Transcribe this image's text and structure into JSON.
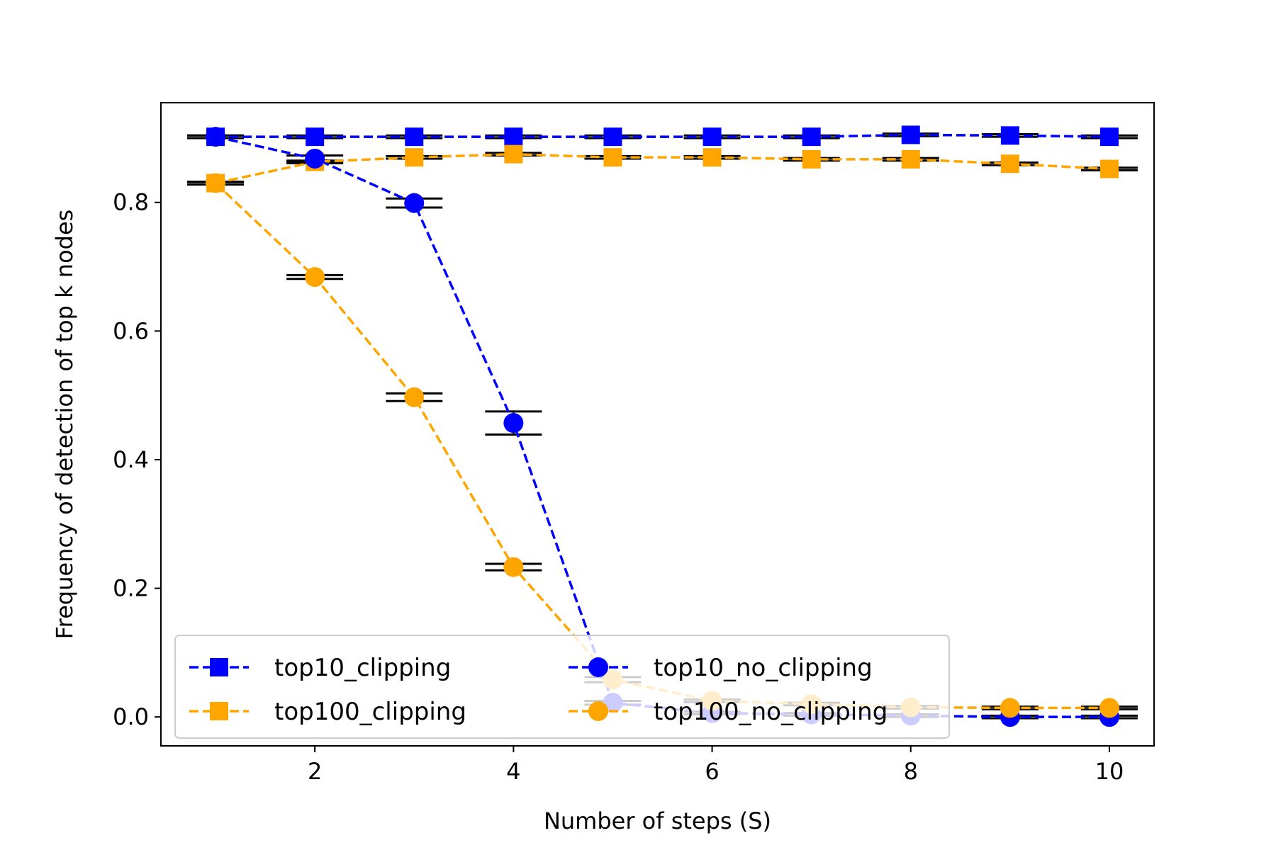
{
  "chart_data": {
    "type": "line",
    "xlabel": "Number of steps (S)",
    "ylabel": "Frequency of detection of top k nodes",
    "xlim": [
      0.45,
      10.45
    ],
    "ylim": [
      -0.045,
      0.955
    ],
    "xticks": [
      2,
      4,
      6,
      8,
      10
    ],
    "yticks": [
      0.0,
      0.2,
      0.4,
      0.6,
      0.8
    ],
    "ytick_labels": [
      "0.0",
      "0.2",
      "0.4",
      "0.6",
      "0.8"
    ],
    "grid": false,
    "legend_position": "lower-left",
    "x": [
      1,
      2,
      3,
      4,
      5,
      6,
      7,
      8,
      9,
      10
    ],
    "series": [
      {
        "name": "top10_clipping",
        "color": "#0000ff",
        "marker": "square",
        "values": [
          0.902,
          0.902,
          0.902,
          0.902,
          0.902,
          0.902,
          0.902,
          0.905,
          0.904,
          0.902
        ],
        "err": [
          0.002,
          0.002,
          0.002,
          0.002,
          0.002,
          0.002,
          0.002,
          0.002,
          0.002,
          0.002
        ]
      },
      {
        "name": "top100_clipping",
        "color": "#ffa500",
        "marker": "square",
        "values": [
          0.83,
          0.863,
          0.87,
          0.875,
          0.87,
          0.87,
          0.867,
          0.867,
          0.86,
          0.852
        ],
        "err": [
          0.002,
          0.002,
          0.002,
          0.002,
          0.002,
          0.002,
          0.002,
          0.002,
          0.002,
          0.002
        ]
      },
      {
        "name": "top10_no_clipping",
        "color": "#0000ff",
        "marker": "circle",
        "values": [
          0.902,
          0.868,
          0.799,
          0.457,
          0.022,
          0.006,
          0.004,
          0.002,
          0.0,
          0.0
        ],
        "err": [
          0.002,
          0.005,
          0.007,
          0.018,
          0.003,
          0.002,
          0.002,
          0.002,
          0.002,
          0.002
        ]
      },
      {
        "name": "top100_no_clipping",
        "color": "#ffa500",
        "marker": "circle",
        "values": [
          0.83,
          0.684,
          0.497,
          0.233,
          0.058,
          0.025,
          0.02,
          0.015,
          0.014,
          0.014
        ],
        "err": [
          0.002,
          0.003,
          0.006,
          0.005,
          0.004,
          0.002,
          0.002,
          0.002,
          0.002,
          0.002
        ]
      }
    ]
  }
}
